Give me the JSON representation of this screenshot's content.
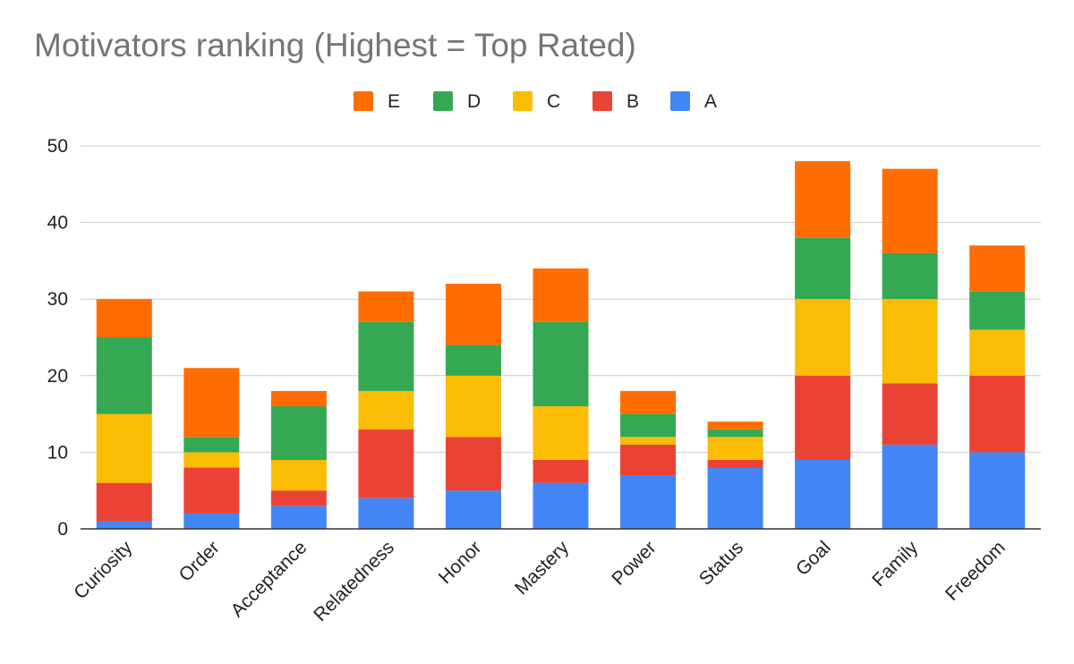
{
  "chart_data": {
    "type": "bar",
    "stacked": true,
    "title": "Motivators ranking (Highest = Top Rated)",
    "xlabel": "",
    "ylabel": "",
    "ylim": [
      0,
      50
    ],
    "yticks": [
      0,
      10,
      20,
      30,
      40,
      50
    ],
    "grid": true,
    "legend_position": "top",
    "categories": [
      "Curiosity",
      "Order",
      "Acceptance",
      "Relatedness",
      "Honor",
      "Mastery",
      "Power",
      "Status",
      "Goal",
      "Family",
      "Freedom"
    ],
    "legend_order": [
      "E",
      "D",
      "C",
      "B",
      "A"
    ],
    "series": [
      {
        "name": "A",
        "color": "#4285F4",
        "values": [
          1,
          2,
          3,
          4,
          5,
          6,
          7,
          8,
          9,
          11,
          10
        ]
      },
      {
        "name": "B",
        "color": "#EA4335",
        "values": [
          5,
          6,
          2,
          9,
          7,
          3,
          4,
          1,
          11,
          8,
          10
        ]
      },
      {
        "name": "C",
        "color": "#FBBC04",
        "values": [
          9,
          2,
          4,
          5,
          8,
          7,
          1,
          3,
          10,
          11,
          6
        ]
      },
      {
        "name": "D",
        "color": "#34A853",
        "values": [
          10,
          2,
          7,
          9,
          4,
          11,
          3,
          1,
          8,
          6,
          5
        ]
      },
      {
        "name": "E",
        "color": "#FF6D01",
        "values": [
          5,
          9,
          2,
          4,
          8,
          7,
          3,
          1,
          10,
          11,
          6
        ]
      }
    ]
  }
}
